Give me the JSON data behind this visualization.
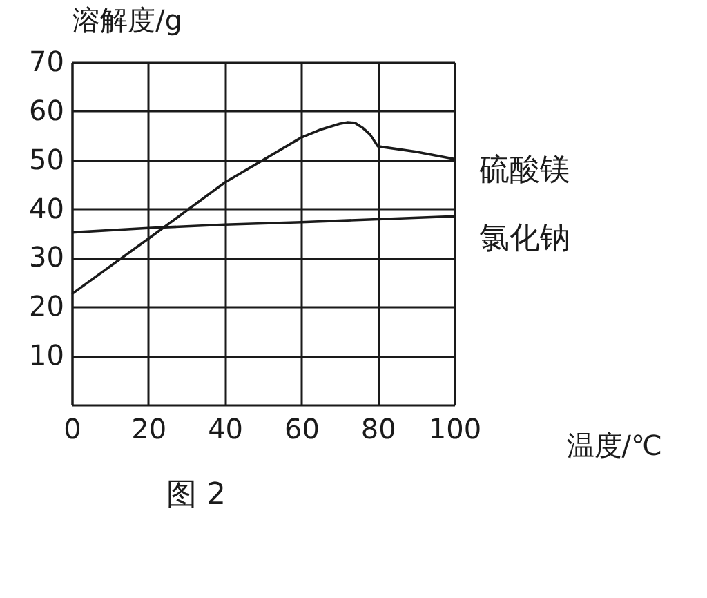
{
  "chart_data": {
    "type": "line",
    "title": "图 2",
    "xlabel": "温度/℃",
    "ylabel": "溶解度/g",
    "xlim": [
      0,
      100
    ],
    "ylim": [
      0,
      70
    ],
    "xticks": [
      0,
      20,
      40,
      60,
      80,
      100
    ],
    "yticks": [
      10,
      20,
      30,
      40,
      50,
      60,
      70
    ],
    "grid": true,
    "legend": false,
    "marker": "none",
    "line_style": "solid",
    "series": [
      {
        "name": "硫酸镁",
        "color": "#1a1a1a",
        "x": [
          0,
          20,
          40,
          60,
          65,
          70,
          72,
          74,
          76,
          78,
          79,
          80,
          90,
          100
        ],
        "values": [
          22.6,
          33.9,
          45.4,
          54.6,
          56.2,
          57.4,
          57.7,
          57.6,
          56.6,
          55.2,
          54,
          52.8,
          51.7,
          50.2
        ]
      },
      {
        "name": "氯化钠",
        "color": "#1a1a1a",
        "x": [
          0,
          20,
          40,
          60,
          80,
          100
        ],
        "values": [
          35.2,
          36.1,
          36.8,
          37.3,
          37.9,
          38.5
        ]
      }
    ]
  }
}
